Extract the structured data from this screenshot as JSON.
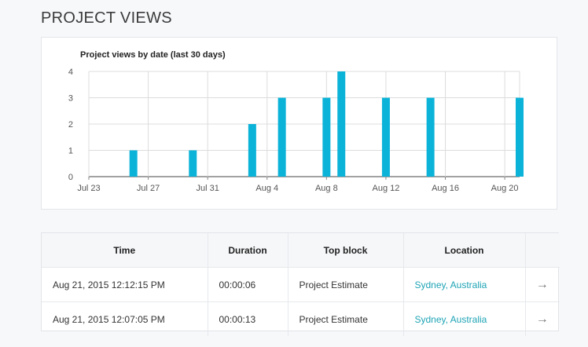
{
  "page": {
    "title": "PROJECT VIEWS"
  },
  "chart": {
    "title": "Project views by date (last 30 days)"
  },
  "chart_data": {
    "type": "bar",
    "title": "Project views by date (last 30 days)",
    "xlabel": "",
    "ylabel": "",
    "ylim": [
      0,
      4
    ],
    "y_ticks": [
      0,
      1,
      2,
      3,
      4
    ],
    "x_ticks": [
      "Jul 23",
      "Jul 27",
      "Jul 31",
      "Aug 4",
      "Aug 8",
      "Aug 12",
      "Aug 16",
      "Aug 20"
    ],
    "x_start": "Jul 23",
    "x_end": "Aug 21",
    "bars": [
      {
        "date": "Jul 26",
        "value": 1
      },
      {
        "date": "Jul 30",
        "value": 1
      },
      {
        "date": "Aug 3",
        "value": 2
      },
      {
        "date": "Aug 5",
        "value": 3
      },
      {
        "date": "Aug 8",
        "value": 3
      },
      {
        "date": "Aug 9",
        "value": 4
      },
      {
        "date": "Aug 12",
        "value": 3
      },
      {
        "date": "Aug 15",
        "value": 3
      },
      {
        "date": "Aug 21",
        "value": 3
      }
    ],
    "grid": true,
    "bar_color": "#0bb3d9"
  },
  "table": {
    "columns": [
      "Time",
      "Duration",
      "Top block",
      "Location",
      ""
    ],
    "rows": [
      {
        "time": "Aug 21, 2015 12:12:15 PM",
        "duration": "00:00:06",
        "top_block": "Project Estimate",
        "location": "Sydney, Australia",
        "action": "→"
      },
      {
        "time": "Aug 21, 2015 12:07:05 PM",
        "duration": "00:00:13",
        "top_block": "Project Estimate",
        "location": "Sydney, Australia",
        "action": "→"
      }
    ]
  },
  "colors": {
    "accent": "#1ea4b5",
    "bar": "#0bb3d9"
  }
}
